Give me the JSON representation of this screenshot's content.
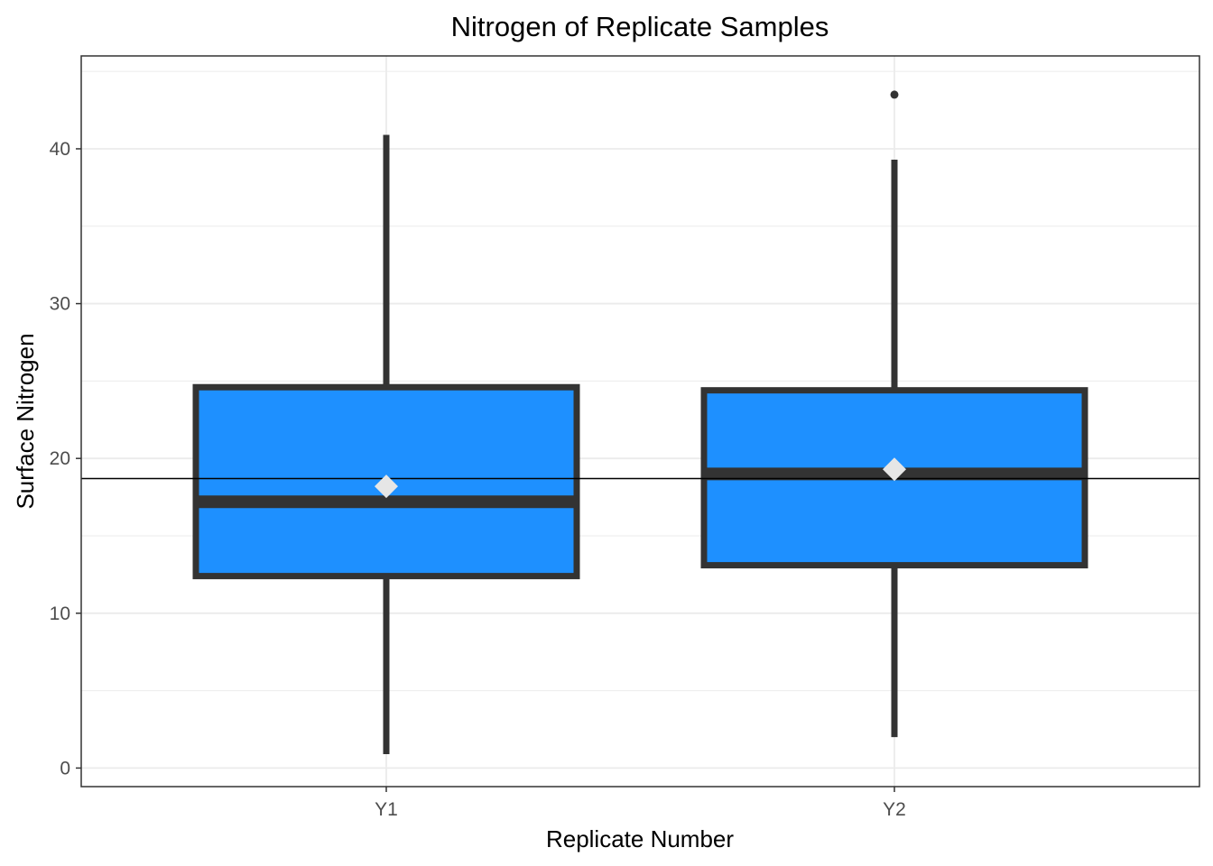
{
  "chart_data": {
    "type": "boxplot",
    "title": "Nitrogen of Replicate Samples",
    "xlabel": "Replicate Number",
    "ylabel": "Surface Nitrogen",
    "ylim": [
      -1.2,
      46
    ],
    "yticks": [
      0,
      10,
      20,
      30,
      40
    ],
    "yticks_minor": [
      5,
      15,
      25,
      35,
      45
    ],
    "categories": [
      "Y1",
      "Y2"
    ],
    "boxes": [
      {
        "category": "Y1",
        "whisker_low": 0.9,
        "q1": 12.4,
        "median": 17.2,
        "q3": 24.6,
        "whisker_high": 40.9,
        "mean": 18.2,
        "outliers": []
      },
      {
        "category": "Y2",
        "whisker_low": 2.0,
        "q1": 13.1,
        "median": 19.0,
        "q3": 24.4,
        "whisker_high": 39.3,
        "mean": 19.3,
        "outliers": [
          43.5
        ]
      }
    ],
    "reference_line": {
      "y": 18.7
    },
    "grid": true,
    "colors": {
      "box_fill": "#1E90FF",
      "box_outline": "#333333",
      "mean_marker": "#E6E6E6",
      "grid": "#EBEBEB",
      "reference_line": "#000000",
      "panel_border": "#333333"
    }
  }
}
